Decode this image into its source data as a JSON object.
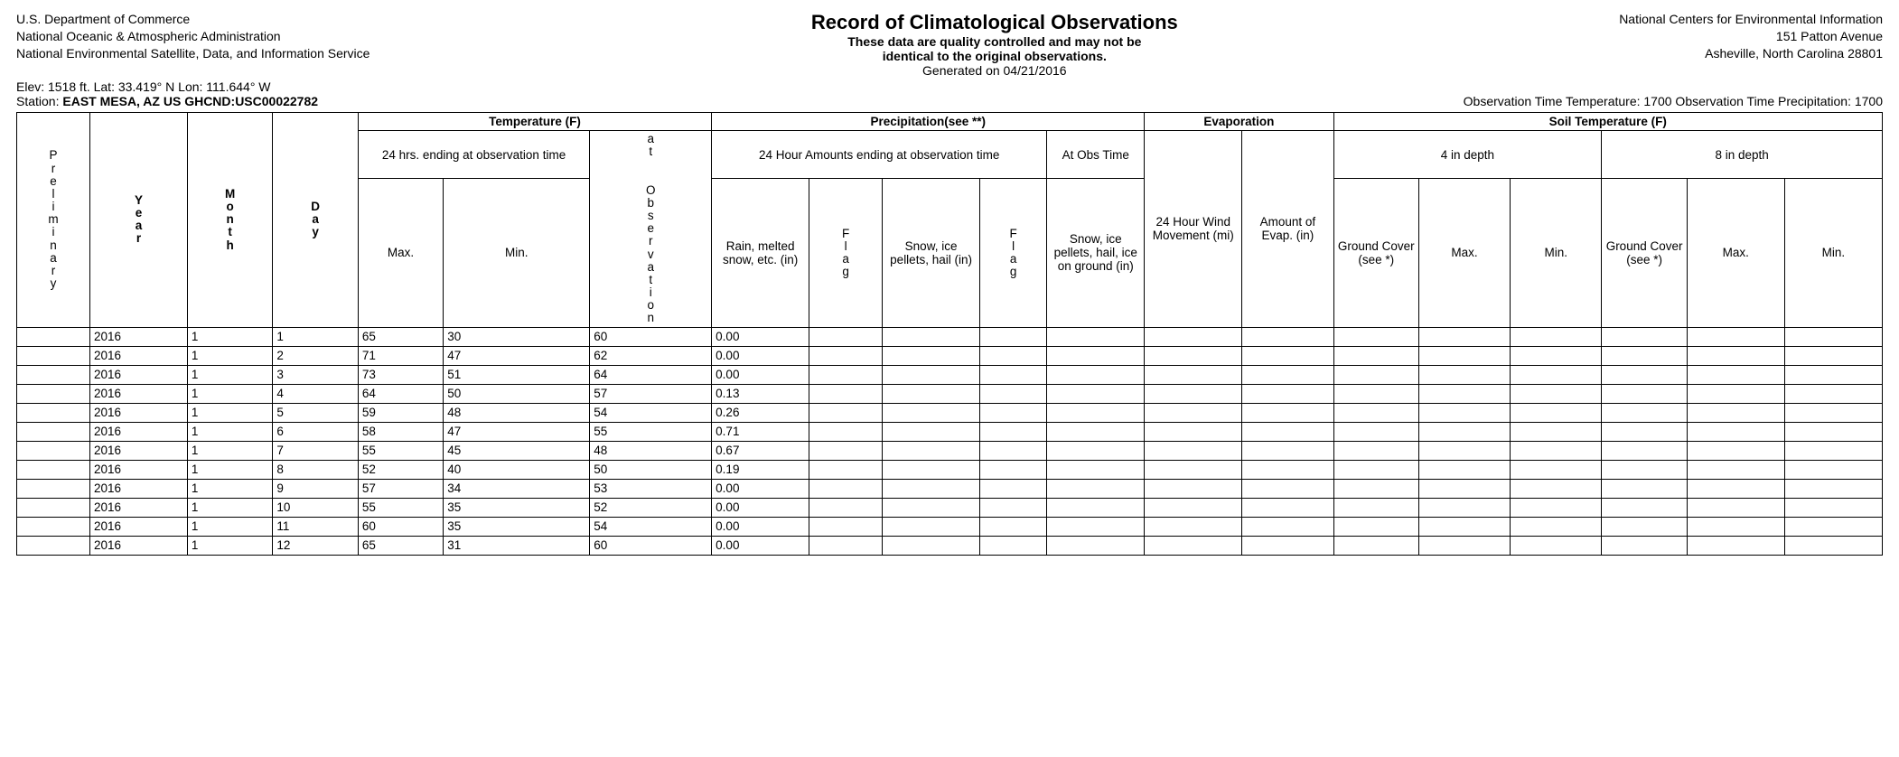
{
  "header": {
    "left": {
      "line1": "U.S. Department of Commerce",
      "line2": "National Oceanic & Atmospheric Administration",
      "line3": "National Environmental Satellite, Data, and Information Service"
    },
    "center": {
      "title": "Record of Climatological Observations",
      "sub1": "These data are quality controlled and may not be",
      "sub2": "identical to the original observations.",
      "generated": "Generated on 04/21/2016"
    },
    "right": {
      "line1": "National Centers for Environmental Information",
      "line2": "151 Patton Avenue",
      "line3": "Asheville, North Carolina 28801"
    },
    "elev": "Elev: 1518 ft. Lat: 33.419° N Lon: 111.644° W",
    "station_label": "Station: ",
    "station_value": "EAST MESA, AZ US GHCND:USC00022782",
    "obs_time": "Observation Time Temperature: 1700 Observation Time Precipitation: 1700"
  },
  "columns": {
    "preliminary": "Preliminary",
    "year": "Year",
    "month": "Month",
    "day": "Day",
    "temp_group": "Temperature (F)",
    "temp_24": "24 hrs. ending at observation time",
    "temp_atobs": "at Observation",
    "max": "Max.",
    "min": "Min.",
    "precip_group": "Precipitation(see **)",
    "precip_24": "24 Hour Amounts ending at observation time",
    "precip_atobs": "At Obs Time",
    "rain": "Rain, melted snow, etc. (in)",
    "flag": "Flag",
    "snow": "Snow, ice pellets, hail (in)",
    "flag2": "Flag",
    "snow_ground": "Snow, ice pellets, hail, ice on ground (in)",
    "evap_group": "Evaporation",
    "wind": "24 Hour Wind Movement (mi)",
    "evap_amt": "Amount of Evap. (in)",
    "soil_group": "Soil Temperature (F)",
    "depth4": "4 in depth",
    "depth8": "8 in depth",
    "ground_cover": "Ground Cover (see *)",
    "smax": "Max.",
    "smin": "Min."
  },
  "rows": [
    {
      "p": "",
      "year": "2016",
      "month": "1",
      "day": "1",
      "max": "65",
      "min": "30",
      "atobs": "60",
      "rain": "0.00",
      "f1": "",
      "snow": "",
      "f2": "",
      "snowg": "",
      "wind": "",
      "evap": "",
      "gc4": "",
      "max4": "",
      "min4": "",
      "gc8": "",
      "max8": "",
      "min8": ""
    },
    {
      "p": "",
      "year": "2016",
      "month": "1",
      "day": "2",
      "max": "71",
      "min": "47",
      "atobs": "62",
      "rain": "0.00",
      "f1": "",
      "snow": "",
      "f2": "",
      "snowg": "",
      "wind": "",
      "evap": "",
      "gc4": "",
      "max4": "",
      "min4": "",
      "gc8": "",
      "max8": "",
      "min8": ""
    },
    {
      "p": "",
      "year": "2016",
      "month": "1",
      "day": "3",
      "max": "73",
      "min": "51",
      "atobs": "64",
      "rain": "0.00",
      "f1": "",
      "snow": "",
      "f2": "",
      "snowg": "",
      "wind": "",
      "evap": "",
      "gc4": "",
      "max4": "",
      "min4": "",
      "gc8": "",
      "max8": "",
      "min8": ""
    },
    {
      "p": "",
      "year": "2016",
      "month": "1",
      "day": "4",
      "max": "64",
      "min": "50",
      "atobs": "57",
      "rain": "0.13",
      "f1": "",
      "snow": "",
      "f2": "",
      "snowg": "",
      "wind": "",
      "evap": "",
      "gc4": "",
      "max4": "",
      "min4": "",
      "gc8": "",
      "max8": "",
      "min8": ""
    },
    {
      "p": "",
      "year": "2016",
      "month": "1",
      "day": "5",
      "max": "59",
      "min": "48",
      "atobs": "54",
      "rain": "0.26",
      "f1": "",
      "snow": "",
      "f2": "",
      "snowg": "",
      "wind": "",
      "evap": "",
      "gc4": "",
      "max4": "",
      "min4": "",
      "gc8": "",
      "max8": "",
      "min8": ""
    },
    {
      "p": "",
      "year": "2016",
      "month": "1",
      "day": "6",
      "max": "58",
      "min": "47",
      "atobs": "55",
      "rain": "0.71",
      "f1": "",
      "snow": "",
      "f2": "",
      "snowg": "",
      "wind": "",
      "evap": "",
      "gc4": "",
      "max4": "",
      "min4": "",
      "gc8": "",
      "max8": "",
      "min8": ""
    },
    {
      "p": "",
      "year": "2016",
      "month": "1",
      "day": "7",
      "max": "55",
      "min": "45",
      "atobs": "48",
      "rain": "0.67",
      "f1": "",
      "snow": "",
      "f2": "",
      "snowg": "",
      "wind": "",
      "evap": "",
      "gc4": "",
      "max4": "",
      "min4": "",
      "gc8": "",
      "max8": "",
      "min8": ""
    },
    {
      "p": "",
      "year": "2016",
      "month": "1",
      "day": "8",
      "max": "52",
      "min": "40",
      "atobs": "50",
      "rain": "0.19",
      "f1": "",
      "snow": "",
      "f2": "",
      "snowg": "",
      "wind": "",
      "evap": "",
      "gc4": "",
      "max4": "",
      "min4": "",
      "gc8": "",
      "max8": "",
      "min8": ""
    },
    {
      "p": "",
      "year": "2016",
      "month": "1",
      "day": "9",
      "max": "57",
      "min": "34",
      "atobs": "53",
      "rain": "0.00",
      "f1": "",
      "snow": "",
      "f2": "",
      "snowg": "",
      "wind": "",
      "evap": "",
      "gc4": "",
      "max4": "",
      "min4": "",
      "gc8": "",
      "max8": "",
      "min8": ""
    },
    {
      "p": "",
      "year": "2016",
      "month": "1",
      "day": "10",
      "max": "55",
      "min": "35",
      "atobs": "52",
      "rain": "0.00",
      "f1": "",
      "snow": "",
      "f2": "",
      "snowg": "",
      "wind": "",
      "evap": "",
      "gc4": "",
      "max4": "",
      "min4": "",
      "gc8": "",
      "max8": "",
      "min8": ""
    },
    {
      "p": "",
      "year": "2016",
      "month": "1",
      "day": "11",
      "max": "60",
      "min": "35",
      "atobs": "54",
      "rain": "0.00",
      "f1": "",
      "snow": "",
      "f2": "",
      "snowg": "",
      "wind": "",
      "evap": "",
      "gc4": "",
      "max4": "",
      "min4": "",
      "gc8": "",
      "max8": "",
      "min8": ""
    },
    {
      "p": "",
      "year": "2016",
      "month": "1",
      "day": "12",
      "max": "65",
      "min": "31",
      "atobs": "60",
      "rain": "0.00",
      "f1": "",
      "snow": "",
      "f2": "",
      "snowg": "",
      "wind": "",
      "evap": "",
      "gc4": "",
      "max4": "",
      "min4": "",
      "gc8": "",
      "max8": "",
      "min8": ""
    }
  ]
}
